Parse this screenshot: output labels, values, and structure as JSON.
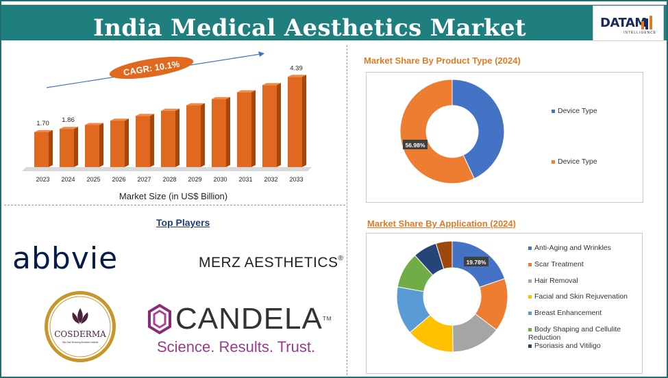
{
  "header": {
    "title": "India Medical Aesthetics Market",
    "logo_text": "DATAM",
    "logo_subtext": "INTELLIGENCE"
  },
  "market_size": {
    "cagr": "CAGR: 10.1%",
    "xlabel": "Market Size (in US$ Billion)"
  },
  "players": {
    "heading": "Top Players",
    "abbvie": "abbvie",
    "merz": "MERZ AESTHETICS",
    "merz_mark": "®",
    "cosderma": "COSDERMA",
    "cosderma_sub": "Skin Hair Slimming Aesthetic Institute",
    "candela": "CANDELA",
    "candela_tm": "TM",
    "candela_tagline": "Science. Results. Trust."
  },
  "product_panel": {
    "title": "Market Share By Product Type (2024)"
  },
  "application_panel": {
    "title": "Market Share By Application (2024)"
  },
  "colors": {
    "title_bg": "#1f7f7f",
    "bar": "#e1691f",
    "bar_side": "#a9460c",
    "accent_orange": "#e07b24",
    "blue": "#4472c4",
    "orange": "#ed7d31",
    "gray": "#a5a5a5",
    "gold": "#ffc000",
    "lightblue": "#5b9bd5",
    "green": "#70ad47",
    "navy": "#264478",
    "brown": "#9e480e"
  },
  "chart_data": [
    {
      "type": "bar",
      "categories": [
        "2023",
        "2024",
        "2025",
        "2026",
        "2027",
        "2028",
        "2029",
        "2030",
        "2031",
        "2032",
        "2033"
      ],
      "values": [
        1.7,
        1.86,
        2.05,
        2.26,
        2.49,
        2.74,
        3.01,
        3.31,
        3.64,
        3.99,
        4.39
      ],
      "labels": [
        "1.70",
        "1.86",
        "",
        "",
        "",
        "",
        "",
        "",
        "",
        "",
        "4.39"
      ],
      "xlabel": "Market Size (in US$ Billion)",
      "ylabel": "",
      "ylim": [
        0,
        4.8
      ]
    },
    {
      "type": "pie",
      "title": "Market Share By Product Type (2024)",
      "series": [
        {
          "name": "Device Type",
          "value": 43.02,
          "color": "#4472c4",
          "label": ""
        },
        {
          "name": "Device Type",
          "value": 56.98,
          "color": "#ed7d31",
          "label": "56.98%"
        }
      ],
      "legend": "right"
    },
    {
      "type": "pie",
      "title": "Market Share By Application (2024)",
      "series": [
        {
          "name": "Anti-Aging and Wrinkles",
          "value": 19.78,
          "color": "#4472c4",
          "label": "19.78%"
        },
        {
          "name": "Scar Treatment",
          "value": 15.5,
          "color": "#ed7d31",
          "label": ""
        },
        {
          "name": "Hair Removal",
          "value": 14.5,
          "color": "#a5a5a5",
          "label": ""
        },
        {
          "name": "Facial and Skin Rejuvenation",
          "value": 14.0,
          "color": "#ffc000",
          "label": ""
        },
        {
          "name": "Breast Enhancement",
          "value": 14.0,
          "color": "#5b9bd5",
          "label": ""
        },
        {
          "name": "Body Shaping and Cellulite Reduction",
          "value": 10.5,
          "color": "#70ad47",
          "label": ""
        },
        {
          "name": "Psoriasis and Vitiligo",
          "value": 7.0,
          "color": "#264478",
          "label": ""
        },
        {
          "name": "",
          "value": 4.72,
          "color": "#9e480e",
          "label": ""
        }
      ],
      "legend": "right"
    }
  ]
}
